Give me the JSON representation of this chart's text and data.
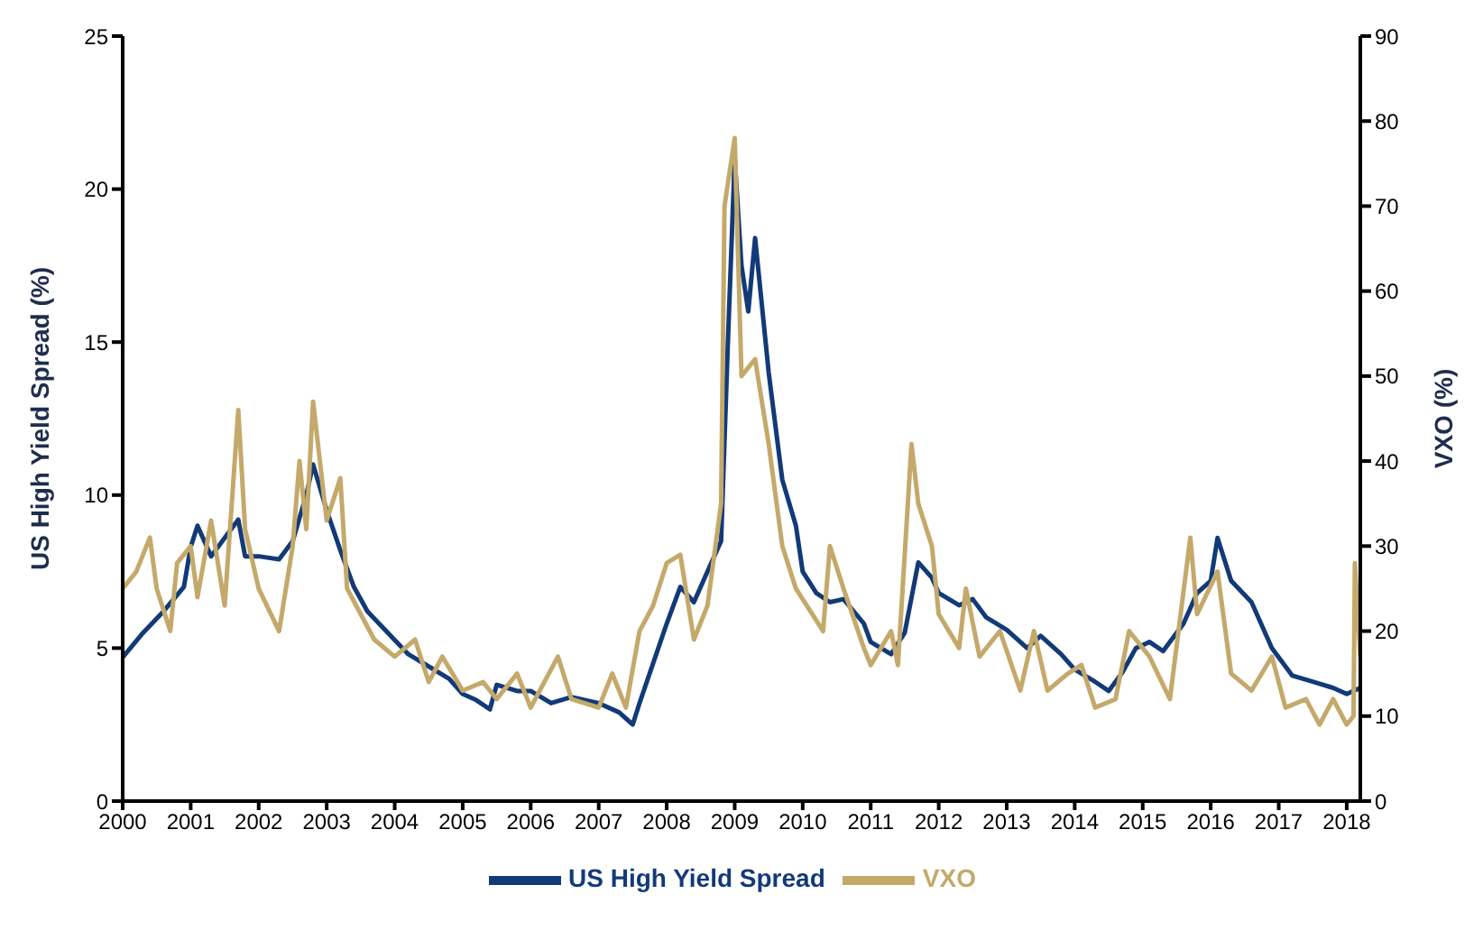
{
  "chart_data": {
    "type": "line",
    "ylabel": "US High Yield Spread (%)",
    "y2label": "VXO (%)",
    "xlim": [
      2000,
      2018.2
    ],
    "xticks": [
      2000,
      2001,
      2002,
      2003,
      2004,
      2005,
      2006,
      2007,
      2008,
      2009,
      2010,
      2011,
      2012,
      2013,
      2014,
      2015,
      2016,
      2017,
      2018
    ],
    "ylim": [
      0,
      25
    ],
    "yticks": [
      0,
      5,
      10,
      15,
      20,
      25
    ],
    "y2lim": [
      0,
      90
    ],
    "y2ticks": [
      0,
      10,
      20,
      30,
      40,
      50,
      60,
      70,
      80,
      90
    ],
    "grid": false,
    "legend": "bottom",
    "marker": "none",
    "line_style": "solid",
    "series": [
      {
        "name": "US High Yield Spread",
        "color": "#123a78",
        "x": [
          2000,
          2000.3,
          2000.6,
          2000.9,
          2001,
          2001.1,
          2001.3,
          2001.5,
          2001.7,
          2001.8,
          2002,
          2002.3,
          2002.5,
          2002.7,
          2002.8,
          2003,
          2003.2,
          2003.4,
          2003.6,
          2003.9,
          2004.2,
          2004.5,
          2004.8,
          2005,
          2005.2,
          2005.4,
          2005.5,
          2005.8,
          2006,
          2006.3,
          2006.6,
          2007,
          2007.3,
          2007.5,
          2007.6,
          2007.8,
          2008,
          2008.2,
          2008.4,
          2008.6,
          2008.8,
          2008.9,
          2009,
          2009.1,
          2009.2,
          2009.3,
          2009.5,
          2009.7,
          2009.9,
          2010,
          2010.2,
          2010.4,
          2010.6,
          2010.9,
          2011,
          2011.3,
          2011.5,
          2011.7,
          2011.9,
          2012,
          2012.3,
          2012.5,
          2012.7,
          2013,
          2013.3,
          2013.5,
          2013.8,
          2014,
          2014.3,
          2014.5,
          2014.7,
          2014.9,
          2015.1,
          2015.3,
          2015.6,
          2015.8,
          2016,
          2016.1,
          2016.3,
          2016.6,
          2016.9,
          2017.2,
          2017.5,
          2017.8,
          2018,
          2018.2
        ],
        "values": [
          4.7,
          5.5,
          6.2,
          7,
          8.3,
          9,
          8,
          8.6,
          9.2,
          8,
          8,
          7.9,
          8.5,
          10,
          11,
          9.5,
          8.2,
          7,
          6.2,
          5.5,
          4.8,
          4.4,
          4,
          3.5,
          3.3,
          3,
          3.8,
          3.6,
          3.6,
          3.2,
          3.4,
          3.2,
          2.9,
          2.5,
          3.2,
          4.5,
          5.8,
          7,
          6.5,
          7.5,
          8.5,
          15,
          21,
          17.5,
          16,
          18.4,
          14,
          10.5,
          9,
          7.5,
          6.8,
          6.5,
          6.6,
          5.8,
          5.2,
          4.8,
          5.5,
          7.8,
          7.3,
          6.8,
          6.4,
          6.6,
          6,
          5.6,
          5,
          5.4,
          4.8,
          4.3,
          3.9,
          3.6,
          4.2,
          5,
          5.2,
          4.9,
          5.8,
          6.8,
          7.2,
          8.6,
          7.2,
          6.5,
          5,
          4.1,
          3.9,
          3.7,
          3.5,
          3.7
        ]
      },
      {
        "name": "VXO",
        "color": "#c4a96b",
        "axis": "y2",
        "x": [
          2000,
          2000.2,
          2000.4,
          2000.5,
          2000.7,
          2000.8,
          2001,
          2001.1,
          2001.3,
          2001.5,
          2001.7,
          2001.8,
          2002,
          2002.3,
          2002.5,
          2002.6,
          2002.7,
          2002.8,
          2003,
          2003.2,
          2003.3,
          2003.5,
          2003.7,
          2004,
          2004.3,
          2004.5,
          2004.7,
          2005,
          2005.3,
          2005.5,
          2005.8,
          2006,
          2006.4,
          2006.6,
          2007,
          2007.2,
          2007.4,
          2007.6,
          2007.8,
          2008,
          2008.2,
          2008.4,
          2008.6,
          2008.8,
          2008.85,
          2009,
          2009.1,
          2009.3,
          2009.5,
          2009.7,
          2009.9,
          2010.3,
          2010.4,
          2010.6,
          2010.9,
          2011,
          2011.3,
          2011.4,
          2011.6,
          2011.7,
          2011.9,
          2012,
          2012.3,
          2012.4,
          2012.6,
          2012.9,
          2013.2,
          2013.4,
          2013.6,
          2013.9,
          2014.1,
          2014.3,
          2014.6,
          2014.8,
          2015.1,
          2015.4,
          2015.7,
          2015.8,
          2016.1,
          2016.3,
          2016.6,
          2016.9,
          2017.1,
          2017.4,
          2017.6,
          2017.8,
          2018,
          2018.1,
          2018.12,
          2018.2
        ],
        "values": [
          25,
          27,
          31,
          25,
          20,
          28,
          30,
          24,
          33,
          23,
          46,
          32,
          25,
          20,
          30,
          40,
          32,
          47,
          33,
          38,
          25,
          22,
          19,
          17,
          19,
          14,
          17,
          13,
          14,
          12,
          15,
          11,
          17,
          12,
          11,
          15,
          11,
          20,
          23,
          28,
          29,
          19,
          23,
          35,
          70,
          78,
          50,
          52,
          42,
          30,
          25,
          20,
          30,
          25,
          18,
          16,
          20,
          16,
          42,
          35,
          30,
          22,
          18,
          25,
          17,
          20,
          13,
          20,
          13,
          15,
          16,
          11,
          12,
          20,
          17,
          12,
          31,
          22,
          27,
          15,
          13,
          17,
          11,
          12,
          9,
          12,
          9,
          10,
          28,
          17
        ]
      }
    ]
  }
}
